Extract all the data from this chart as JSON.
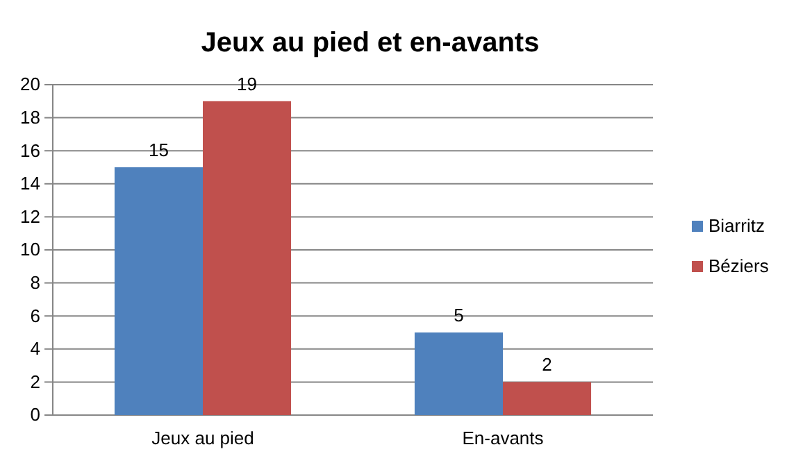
{
  "chart_data": {
    "type": "bar",
    "title": "Jeux au pied et en-avants",
    "categories": [
      "Jeux au pied",
      "En-avants"
    ],
    "series": [
      {
        "name": "Biarritz",
        "color": "#4f81bd",
        "values": [
          15,
          5
        ]
      },
      {
        "name": "Béziers",
        "color": "#c0504d",
        "values": [
          19,
          2
        ]
      }
    ],
    "ylim": [
      0,
      20
    ],
    "yticks": [
      0,
      2,
      4,
      6,
      8,
      10,
      12,
      14,
      16,
      18,
      20
    ],
    "grid": "y",
    "legend": "right",
    "data_labels": true
  }
}
